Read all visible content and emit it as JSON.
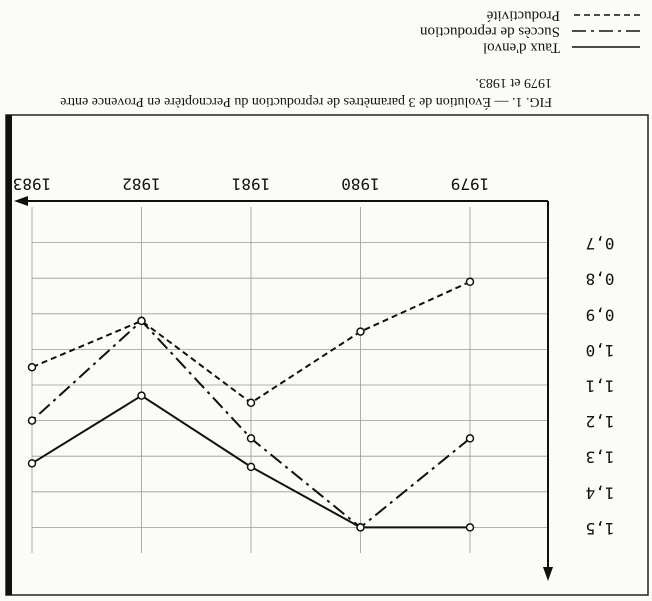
{
  "chart_data": {
    "type": "line",
    "title": "FIG. 1. — Évolution de 3 paramètres de reproduction du Percnoptère en Provence entre 1979 et 1983.",
    "categories": [
      "1979",
      "1980",
      "1981",
      "1982",
      "1983"
    ],
    "series": [
      {
        "name": "Taux d'envol",
        "color": "#111111",
        "style": "solid",
        "values": [
          1.5,
          1.5,
          1.33,
          1.13,
          1.32
        ]
      },
      {
        "name": "Succès de reproduction",
        "color": "#111111",
        "style": "dashdot",
        "values": [
          1.25,
          1.5,
          1.25,
          0.92,
          1.2
        ]
      },
      {
        "name": "Productivité",
        "color": "#111111",
        "style": "dashed",
        "values": [
          0.81,
          0.95,
          1.15,
          0.92,
          1.05
        ]
      }
    ],
    "ylim": [
      0.6,
      1.6
    ],
    "yticks": [
      {
        "value": 0.7,
        "label": "0,7"
      },
      {
        "value": 0.8,
        "label": "0,8"
      },
      {
        "value": 0.9,
        "label": "0,9"
      },
      {
        "value": 1.0,
        "label": "1,0"
      },
      {
        "value": 1.1,
        "label": "1,1"
      },
      {
        "value": 1.2,
        "label": "1,2"
      },
      {
        "value": 1.3,
        "label": "1,3"
      },
      {
        "value": 1.4,
        "label": "1,4"
      },
      {
        "value": 1.5,
        "label": "1,5"
      }
    ],
    "grid": true,
    "rotated": true
  }
}
